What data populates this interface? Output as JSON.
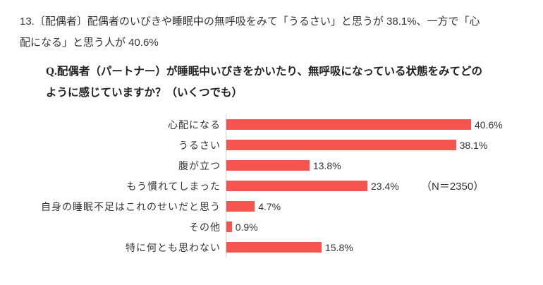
{
  "header": {
    "summary_line1": "13.〔配偶者〕配偶者のいびきや睡眠中の無呼吸をみて「うるさい」と思うが 38.1%、一方で「心",
    "summary_line2": "配になる」と思う人が 40.6%",
    "question_line1": "Q.配偶者（パートナー）が睡眠中いびきをかいたり、無呼吸になっている状態をみてどの",
    "question_line2": "ように感じていますか？（いくつでも）"
  },
  "chart_data": {
    "type": "bar",
    "orientation": "horizontal",
    "title": "",
    "xlabel": "",
    "ylabel": "",
    "xlim": [
      0,
      45
    ],
    "grid": false,
    "legend": false,
    "categories": [
      "心配になる",
      "うるさい",
      "腹が立つ",
      "もう慣れてしまった",
      "自身の睡眠不足はこれのせいだと思う",
      "その他",
      "特に何とも思わない"
    ],
    "values": [
      40.6,
      38.1,
      13.8,
      23.4,
      4.7,
      0.9,
      15.8
    ],
    "value_labels": [
      "40.6%",
      "38.1%",
      "13.8%",
      "23.4%",
      "4.7%",
      "0.9%",
      "15.8%"
    ],
    "sample_label": "（N＝2350）",
    "sample_label_row_index": 3,
    "bar_color": "#f5544f",
    "axis_color": "#cccccc"
  },
  "colors": {
    "background": "#ffffff",
    "text": "#333333"
  }
}
